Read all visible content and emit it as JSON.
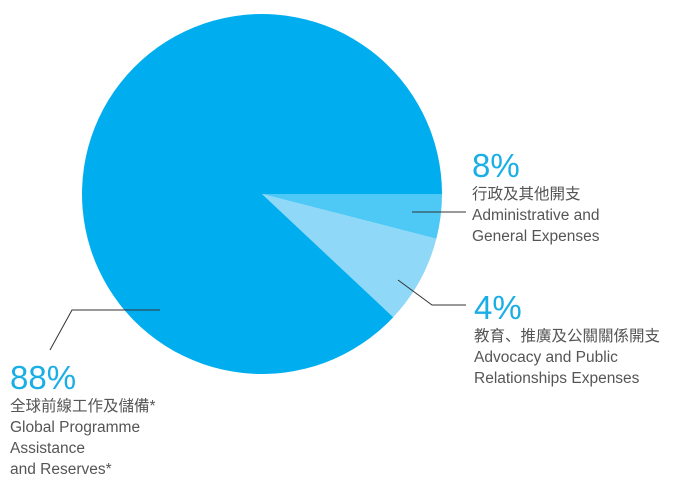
{
  "chart_data": {
    "type": "pie",
    "start_angle_deg": 0,
    "direction": "clockwise",
    "slices": [
      {
        "value": 4,
        "percent_label": "4%",
        "label_zh": "行政及其他開支",
        "label_en": [
          "Administrative and",
          "General Expenses"
        ],
        "color": "#4ec8f4"
      },
      {
        "value": 8,
        "percent_label": "8%",
        "label_zh": "教育、推廣及公關關係開支",
        "label_en": [
          "Advocacy and Public",
          "Relationships Expenses"
        ],
        "color": "#8fd8f8"
      },
      {
        "value": 88,
        "percent_label": "88%",
        "label_zh": "全球前線工作及儲備*",
        "label_en": [
          "Global Programme",
          "Assistance",
          "and Reserves*"
        ],
        "color": "#00aeef"
      }
    ]
  }
}
